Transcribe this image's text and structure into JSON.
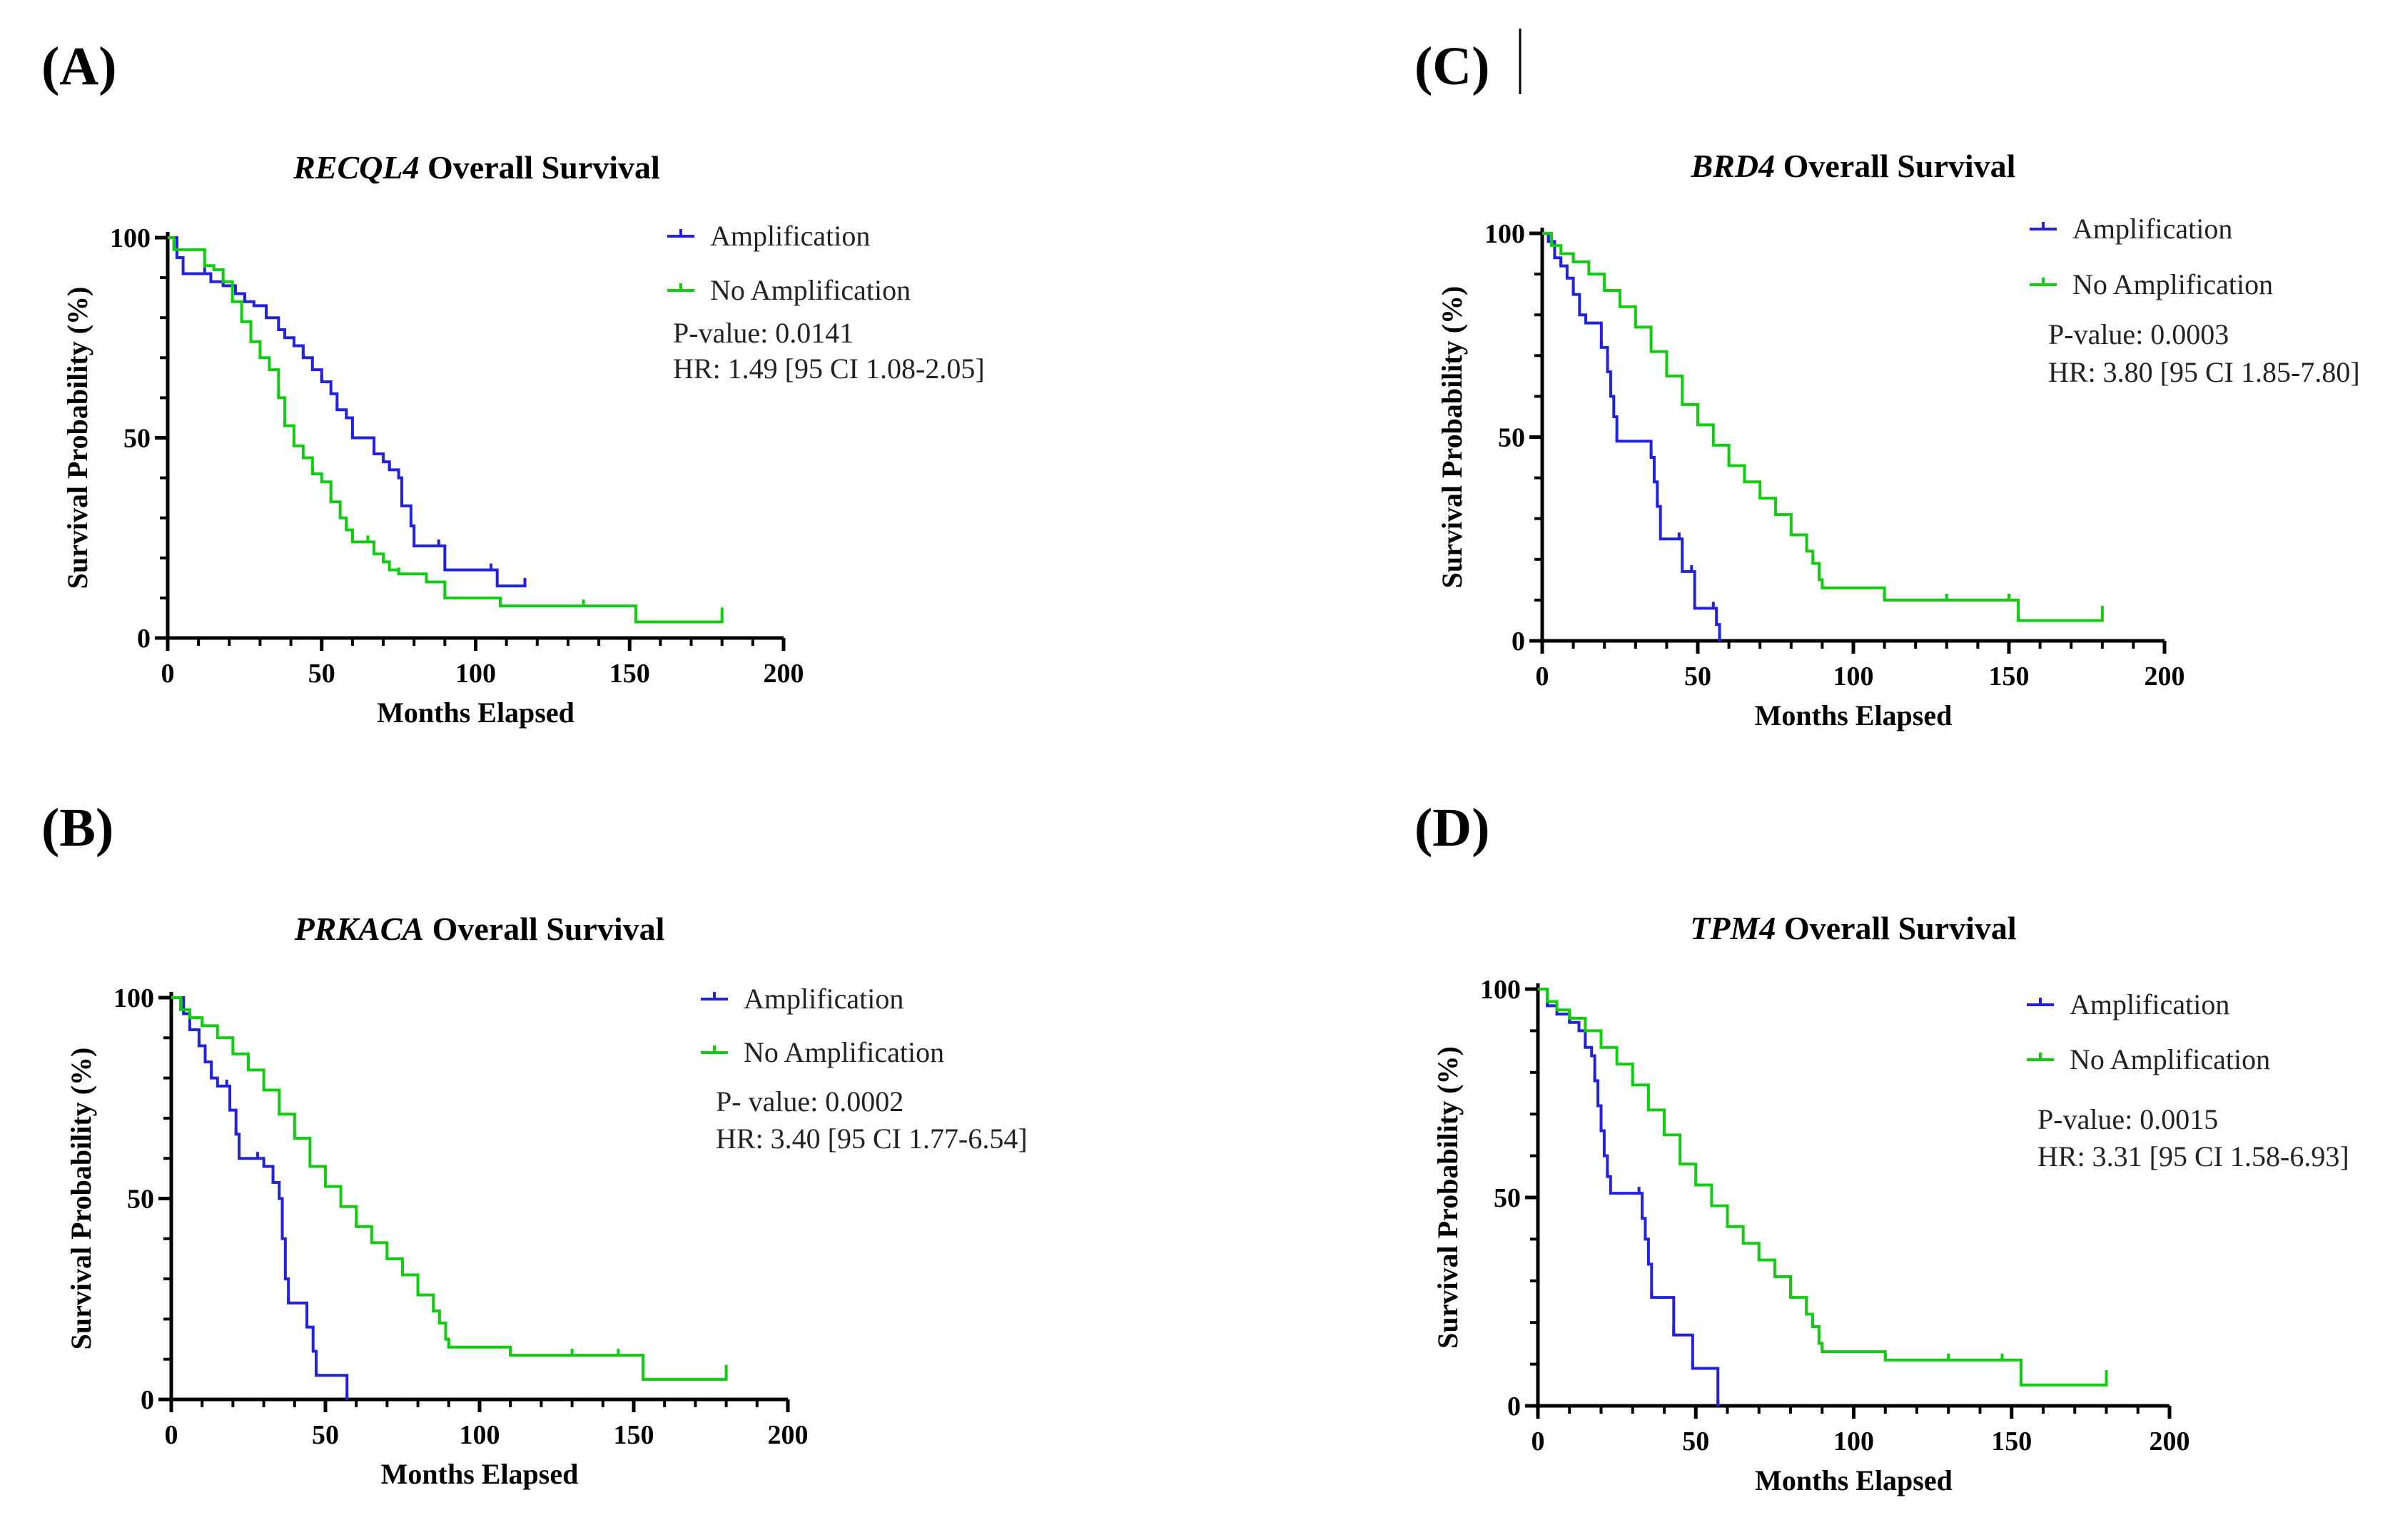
{
  "chart_data": [
    {
      "id": "A",
      "panel_label": "(A)",
      "type": "line",
      "subtype": "kaplan-meier",
      "title_gene": "RECQL4",
      "title_rest": " Overall Survival",
      "xlabel": "Months Elapsed",
      "ylabel": "Survival Probability (%)",
      "xlim": [
        0,
        200
      ],
      "ylim": [
        0,
        100
      ],
      "xticks": [
        0,
        50,
        100,
        150,
        200
      ],
      "yticks": [
        0,
        50,
        100
      ],
      "legend": [
        "Amplification",
        "No Amplification"
      ],
      "stats": [
        "P-value: 0.0141",
        "HR: 1.49 [95 CI 1.08-2.05]"
      ],
      "series": [
        {
          "name": "Amplification",
          "color": "#2222dd",
          "points": [
            [
              0,
              100
            ],
            [
              3,
              95
            ],
            [
              5,
              91
            ],
            [
              12,
              91
            ],
            [
              14,
              89
            ],
            [
              18,
              88
            ],
            [
              22,
              86
            ],
            [
              25,
              84
            ],
            [
              28,
              83
            ],
            [
              32,
              80
            ],
            [
              36,
              77
            ],
            [
              38,
              75
            ],
            [
              41,
              73
            ],
            [
              44,
              70
            ],
            [
              47,
              67
            ],
            [
              50,
              64
            ],
            [
              53,
              61
            ],
            [
              55,
              57
            ],
            [
              58,
              55
            ],
            [
              60,
              50
            ],
            [
              65,
              50
            ],
            [
              67,
              46
            ],
            [
              70,
              44
            ],
            [
              72,
              42
            ],
            [
              75,
              40
            ],
            [
              76,
              33
            ],
            [
              78,
              33
            ],
            [
              79,
              28
            ],
            [
              80,
              23
            ],
            [
              88,
              23
            ],
            [
              90,
              17
            ],
            [
              105,
              17
            ],
            [
              107,
              13
            ],
            [
              116,
              13
            ],
            [
              116,
              15
            ]
          ]
        },
        {
          "name": "No Amplification",
          "color": "#11cc11",
          "points": [
            [
              0,
              100
            ],
            [
              2,
              97
            ],
            [
              8,
              97
            ],
            [
              12,
              93
            ],
            [
              15,
              92
            ],
            [
              18,
              89
            ],
            [
              21,
              84
            ],
            [
              24,
              79
            ],
            [
              27,
              74
            ],
            [
              30,
              70
            ],
            [
              33,
              67
            ],
            [
              36,
              60
            ],
            [
              38,
              53
            ],
            [
              41,
              48
            ],
            [
              44,
              45
            ],
            [
              47,
              41
            ],
            [
              50,
              39
            ],
            [
              53,
              34
            ],
            [
              56,
              30
            ],
            [
              58,
              27
            ],
            [
              60,
              24
            ],
            [
              65,
              24
            ],
            [
              67,
              21
            ],
            [
              70,
              19
            ],
            [
              72,
              17
            ],
            [
              75,
              16
            ],
            [
              80,
              16
            ],
            [
              84,
              14
            ],
            [
              86,
              14
            ],
            [
              90,
              10
            ],
            [
              100,
              10
            ],
            [
              108,
              8
            ],
            [
              120,
              8
            ],
            [
              135,
              8
            ],
            [
              152,
              8
            ],
            [
              152,
              4
            ],
            [
              180,
              4
            ],
            [
              180,
              6
            ]
          ]
        }
      ]
    },
    {
      "id": "B",
      "panel_label": "(B)",
      "type": "line",
      "subtype": "kaplan-meier",
      "title_gene": "PRKACA",
      "title_rest": " Overall Survival",
      "xlabel": "Months Elapsed",
      "ylabel": "Survival Probability (%)",
      "xlim": [
        0,
        200
      ],
      "ylim": [
        0,
        100
      ],
      "xticks": [
        0,
        50,
        100,
        150,
        200
      ],
      "yticks": [
        0,
        50,
        100
      ],
      "legend": [
        "Amplification",
        "No Amplification"
      ],
      "stats": [
        "P- value: 0.0002",
        "HR: 3.40 [95 CI 1.77-6.54]"
      ],
      "series": [
        {
          "name": "Amplification",
          "color": "#2222dd",
          "points": [
            [
              0,
              100
            ],
            [
              4,
              96
            ],
            [
              6,
              92
            ],
            [
              9,
              88
            ],
            [
              11,
              84
            ],
            [
              13,
              80
            ],
            [
              15,
              78
            ],
            [
              18,
              78
            ],
            [
              19,
              72
            ],
            [
              21,
              66
            ],
            [
              22,
              60
            ],
            [
              28,
              60
            ],
            [
              30,
              58
            ],
            [
              33,
              54
            ],
            [
              35,
              50
            ],
            [
              36,
              40
            ],
            [
              37,
              30
            ],
            [
              38,
              24
            ],
            [
              43,
              24
            ],
            [
              44,
              18
            ],
            [
              46,
              12
            ],
            [
              47,
              6
            ],
            [
              57,
              6
            ],
            [
              57,
              0
            ]
          ]
        },
        {
          "name": "No Amplification",
          "color": "#11cc11",
          "points": [
            [
              0,
              100
            ],
            [
              3,
              97
            ],
            [
              6,
              95
            ],
            [
              10,
              93
            ],
            [
              15,
              90
            ],
            [
              20,
              86
            ],
            [
              25,
              82
            ],
            [
              30,
              77
            ],
            [
              35,
              71
            ],
            [
              40,
              65
            ],
            [
              45,
              58
            ],
            [
              50,
              53
            ],
            [
              55,
              48
            ],
            [
              60,
              43
            ],
            [
              65,
              39
            ],
            [
              70,
              35
            ],
            [
              75,
              31
            ],
            [
              80,
              26
            ],
            [
              85,
              22
            ],
            [
              87,
              19
            ],
            [
              89,
              15
            ],
            [
              90,
              13
            ],
            [
              100,
              13
            ],
            [
              110,
              11
            ],
            [
              120,
              11
            ],
            [
              130,
              11
            ],
            [
              140,
              11
            ],
            [
              145,
              11
            ],
            [
              153,
              11
            ],
            [
              153,
              5
            ],
            [
              180,
              5
            ],
            [
              180,
              7
            ]
          ]
        }
      ]
    },
    {
      "id": "C",
      "panel_label": "(C)",
      "type": "line",
      "subtype": "kaplan-meier",
      "title_gene": "BRD4",
      "title_rest": " Overall Survival",
      "xlabel": "Months Elapsed",
      "ylabel": "Survival Probability (%)",
      "xlim": [
        0,
        200
      ],
      "ylim": [
        0,
        100
      ],
      "xticks": [
        0,
        50,
        100,
        150,
        200
      ],
      "yticks": [
        0,
        50,
        100
      ],
      "legend": [
        "Amplification",
        "No Amplification"
      ],
      "stats": [
        "P-value: 0.0003",
        "HR: 3.80 [95 CI 1.85-7.80]"
      ],
      "series": [
        {
          "name": "Amplification",
          "color": "#2222dd",
          "points": [
            [
              0,
              100
            ],
            [
              2,
              98
            ],
            [
              4,
              94
            ],
            [
              6,
              92
            ],
            [
              8,
              89
            ],
            [
              10,
              85
            ],
            [
              12,
              80
            ],
            [
              14,
              78
            ],
            [
              18,
              78
            ],
            [
              19,
              72
            ],
            [
              21,
              66
            ],
            [
              22,
              60
            ],
            [
              23,
              55
            ],
            [
              24,
              49
            ],
            [
              34,
              49
            ],
            [
              35,
              45
            ],
            [
              36,
              39
            ],
            [
              37,
              33
            ],
            [
              38,
              25
            ],
            [
              44,
              25
            ],
            [
              45,
              17
            ],
            [
              48,
              17
            ],
            [
              49,
              8
            ],
            [
              55,
              8
            ],
            [
              56,
              4
            ],
            [
              57,
              0
            ]
          ]
        },
        {
          "name": "No Amplification",
          "color": "#11cc11",
          "points": [
            [
              0,
              100
            ],
            [
              3,
              97
            ],
            [
              6,
              95
            ],
            [
              10,
              93
            ],
            [
              15,
              90
            ],
            [
              20,
              86
            ],
            [
              25,
              82
            ],
            [
              30,
              77
            ],
            [
              35,
              71
            ],
            [
              40,
              65
            ],
            [
              45,
              58
            ],
            [
              50,
              53
            ],
            [
              55,
              48
            ],
            [
              60,
              43
            ],
            [
              65,
              39
            ],
            [
              70,
              35
            ],
            [
              75,
              31
            ],
            [
              80,
              26
            ],
            [
              85,
              22
            ],
            [
              87,
              19
            ],
            [
              89,
              15
            ],
            [
              90,
              13
            ],
            [
              100,
              13
            ],
            [
              110,
              10
            ],
            [
              120,
              10
            ],
            [
              130,
              10
            ],
            [
              140,
              10
            ],
            [
              150,
              10
            ],
            [
              153,
              10
            ],
            [
              153,
              5
            ],
            [
              180,
              5
            ],
            [
              180,
              7
            ]
          ]
        }
      ]
    },
    {
      "id": "D",
      "panel_label": "(D)",
      "type": "line",
      "subtype": "kaplan-meier",
      "title_gene": "TPM4",
      "title_rest": " Overall Survival",
      "xlabel": "Months Elapsed",
      "ylabel": "Survival Probability (%)",
      "xlim": [
        0,
        200
      ],
      "ylim": [
        0,
        100
      ],
      "xticks": [
        0,
        50,
        100,
        150,
        200
      ],
      "yticks": [
        0,
        50,
        100
      ],
      "legend": [
        "Amplification",
        "No Amplification"
      ],
      "stats": [
        "P-value: 0.0015",
        "HR: 3.31 [95 CI 1.58-6.93]"
      ],
      "series": [
        {
          "name": "Amplification",
          "color": "#2222dd",
          "points": [
            [
              0,
              100
            ],
            [
              3,
              96
            ],
            [
              6,
              94
            ],
            [
              10,
              92
            ],
            [
              13,
              90
            ],
            [
              15,
              86
            ],
            [
              17,
              84
            ],
            [
              18,
              78
            ],
            [
              19,
              72
            ],
            [
              20,
              66
            ],
            [
              21,
              60
            ],
            [
              22,
              55
            ],
            [
              23,
              51
            ],
            [
              32,
              51
            ],
            [
              33,
              45
            ],
            [
              34,
              40
            ],
            [
              35,
              34
            ],
            [
              36,
              26
            ],
            [
              42,
              26
            ],
            [
              43,
              17
            ],
            [
              48,
              17
            ],
            [
              49,
              9
            ],
            [
              55,
              9
            ],
            [
              57,
              0
            ]
          ]
        },
        {
          "name": "No Amplification",
          "color": "#11cc11",
          "points": [
            [
              0,
              100
            ],
            [
              3,
              97
            ],
            [
              6,
              95
            ],
            [
              10,
              93
            ],
            [
              15,
              90
            ],
            [
              20,
              86
            ],
            [
              25,
              82
            ],
            [
              30,
              77
            ],
            [
              35,
              71
            ],
            [
              40,
              65
            ],
            [
              45,
              58
            ],
            [
              50,
              53
            ],
            [
              55,
              48
            ],
            [
              60,
              43
            ],
            [
              65,
              39
            ],
            [
              70,
              35
            ],
            [
              75,
              31
            ],
            [
              80,
              26
            ],
            [
              85,
              22
            ],
            [
              87,
              19
            ],
            [
              89,
              15
            ],
            [
              90,
              13
            ],
            [
              100,
              13
            ],
            [
              110,
              11
            ],
            [
              120,
              11
            ],
            [
              130,
              11
            ],
            [
              140,
              11
            ],
            [
              147,
              11
            ],
            [
              153,
              11
            ],
            [
              153,
              5
            ],
            [
              180,
              5
            ],
            [
              180,
              7
            ]
          ]
        }
      ]
    }
  ]
}
